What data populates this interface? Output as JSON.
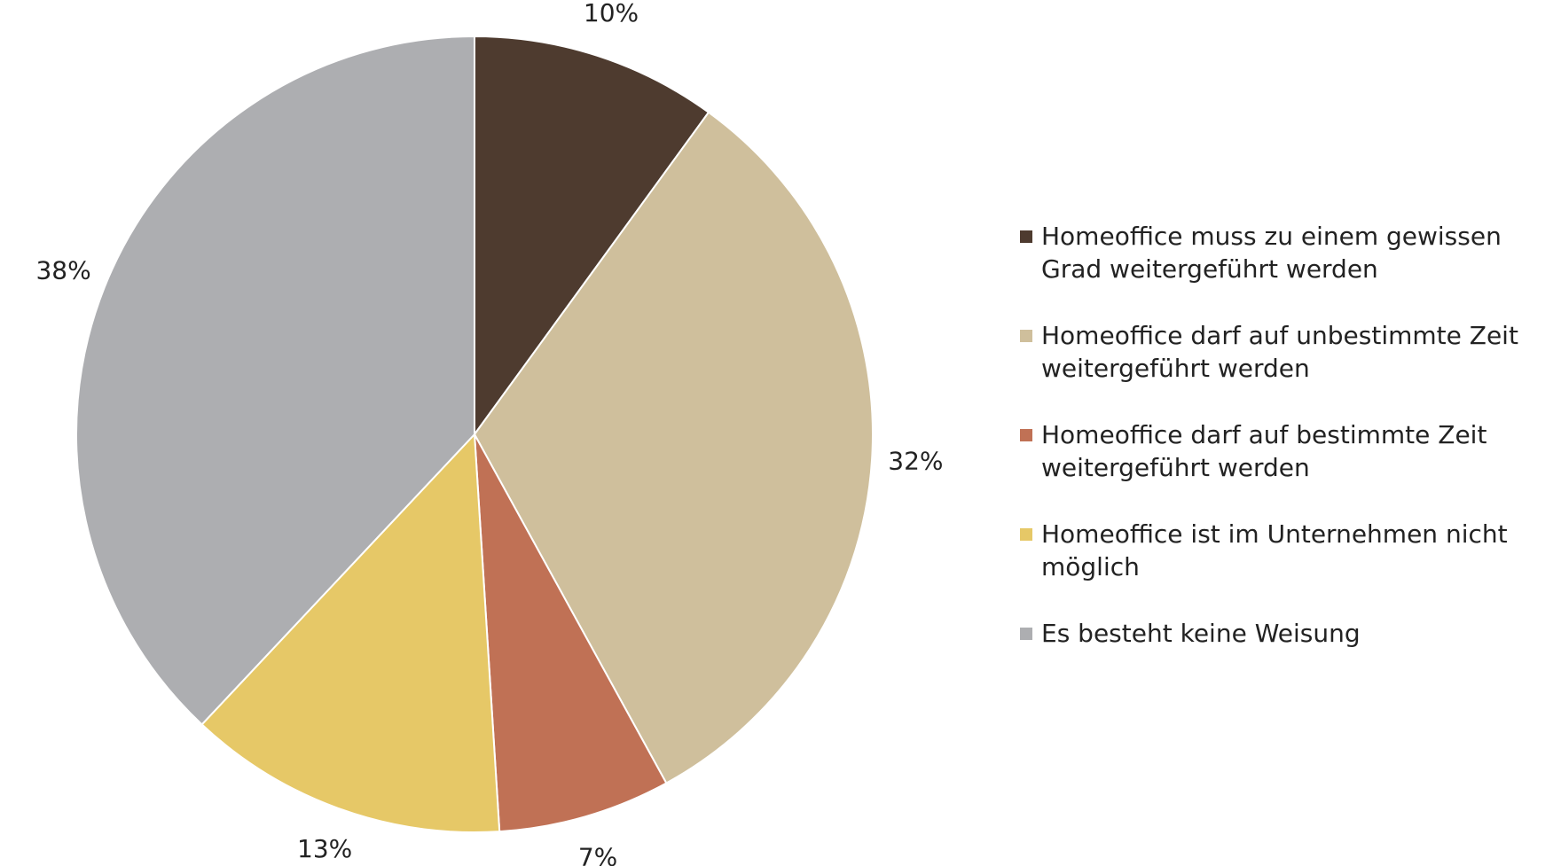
{
  "chart_data": {
    "type": "pie",
    "categories": [
      "Homeoffice muss zu einem gewissen Grad weitergeführt werden",
      "Homeoffice darf auf unbestimmte Zeit weitergeführt werden",
      "Homeoffice darf auf bestimmte Zeit weitergeführt werden",
      "Homeoffice ist im Unternehmen nicht möglich",
      "Es besteht keine Weisung"
    ],
    "values": [
      10,
      32,
      7,
      13,
      38
    ],
    "value_labels": [
      "10%",
      "32%",
      "7%",
      "13%",
      "38%"
    ],
    "colors": [
      "#4e3b2f",
      "#cfbf9c",
      "#c07155",
      "#e6c867",
      "#adaeb1"
    ],
    "legend": "right"
  }
}
